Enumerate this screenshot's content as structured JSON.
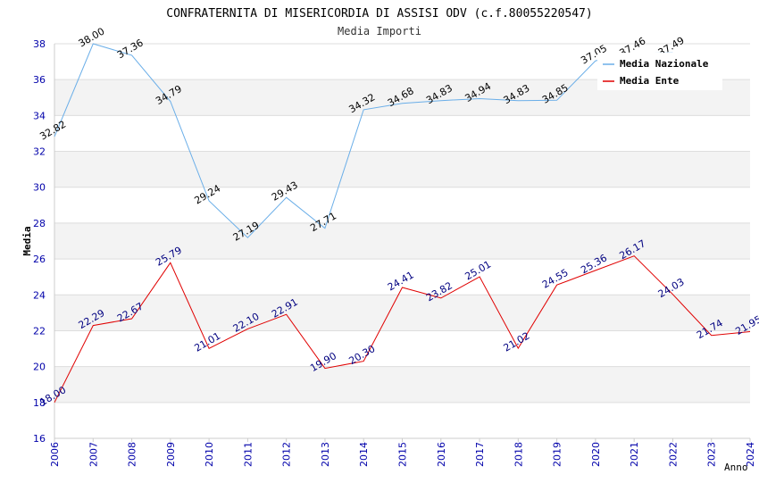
{
  "chart_data": {
    "type": "line",
    "title": "CONFRATERNITA DI MISERICORDIA DI ASSISI ODV (c.f.80055220547)",
    "subtitle": "Media Importi",
    "xlabel": "Anno",
    "ylabel": "Media",
    "ylim": [
      16,
      38
    ],
    "yticks": [
      "16",
      "18",
      "20",
      "22",
      "24",
      "26",
      "28",
      "30",
      "32",
      "34",
      "36",
      "38"
    ],
    "x": [
      "2006",
      "2007",
      "2008",
      "2009",
      "2010",
      "2011",
      "2012",
      "2013",
      "2014",
      "2015",
      "2016",
      "2017",
      "2018",
      "2019",
      "2020",
      "2021",
      "2022",
      "2023",
      "2024"
    ],
    "legend_position": "top-right",
    "series": [
      {
        "name": "Media Nazionale",
        "color": "#6aaee8",
        "label_color": "#000000",
        "values": [
          32.82,
          38.0,
          37.36,
          34.79,
          29.24,
          27.19,
          29.43,
          27.71,
          34.32,
          34.68,
          34.83,
          34.94,
          34.83,
          34.85,
          37.05,
          37.46,
          37.49,
          null,
          null
        ],
        "labels": [
          "32.82",
          "38.00",
          "37.36",
          "34.79",
          "29.24",
          "27.19",
          "29.43",
          "27.71",
          "34.32",
          "34.68",
          "34.83",
          "34.94",
          "34.83",
          "34.85",
          "37.05",
          "37.46",
          "37.49",
          "",
          ""
        ]
      },
      {
        "name": "Media Ente",
        "color": "#e00000",
        "label_color": "#000080",
        "values": [
          18.0,
          22.29,
          22.67,
          25.79,
          21.01,
          22.1,
          22.91,
          19.9,
          20.3,
          24.41,
          23.82,
          25.01,
          21.02,
          24.55,
          25.36,
          26.17,
          24.03,
          21.74,
          21.95
        ],
        "labels": [
          "18.00",
          "22.29",
          "22.67",
          "25.79",
          "21.01",
          "22.10",
          "22.91",
          "19.90",
          "20.30",
          "24.41",
          "23.82",
          "25.01",
          "21.02",
          "24.55",
          "25.36",
          "26.17",
          "24.03",
          "21.74",
          "21.95"
        ]
      }
    ]
  }
}
